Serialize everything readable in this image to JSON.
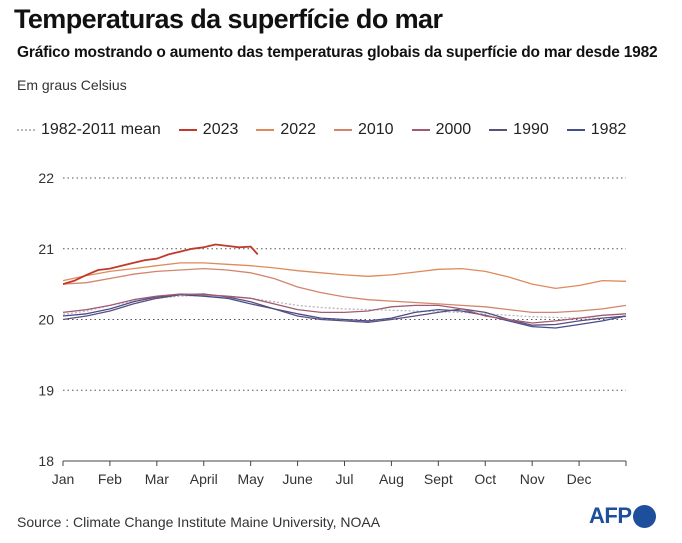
{
  "header": {
    "title": "Temperaturas da superfície do mar",
    "subtitle": "Gráfico mostrando o aumento das temperaturas globais da superfície do mar desde 1982",
    "unit": "Em graus Celsius"
  },
  "legend": [
    {
      "label": "1982-2011 mean",
      "color": "#b8b8b8",
      "style": "dotted"
    },
    {
      "label": "2023",
      "color": "#c0392b",
      "style": "solid"
    },
    {
      "label": "2022",
      "color": "#e08a5a",
      "style": "solid"
    },
    {
      "label": "2010",
      "color": "#d3856b",
      "style": "solid"
    },
    {
      "label": "2000",
      "color": "#a25a72",
      "style": "solid"
    },
    {
      "label": "1990",
      "color": "#5c4f7a",
      "style": "solid"
    },
    {
      "label": "1982",
      "color": "#474c8e",
      "style": "solid"
    }
  ],
  "footer": {
    "source": "Source : Climate Change Institute Maine University, NOAA",
    "logo_text": "AFP"
  },
  "chart_data": {
    "type": "line",
    "title": "Temperaturas da superfície do mar",
    "ylabel": "Em graus Celsius",
    "xlabel": "",
    "categories": [
      "Jan",
      "Feb",
      "Mar",
      "April",
      "May",
      "June",
      "Jul",
      "Aug",
      "Sept",
      "Oct",
      "Nov",
      "Dec"
    ],
    "ylim": [
      18,
      22
    ],
    "yticks": [
      18,
      19,
      20,
      21,
      22
    ],
    "xlim": [
      0,
      12
    ],
    "grid": "dotted horizontal",
    "series": [
      {
        "name": "1982-2011 mean",
        "color": "#b8b8b8",
        "dash": "2,2",
        "x": [
          0,
          0.5,
          1,
          1.5,
          2,
          2.5,
          3,
          3.5,
          4,
          4.5,
          5,
          5.5,
          6,
          6.5,
          7,
          7.5,
          8,
          8.5,
          9,
          9.5,
          10,
          10.5,
          11,
          11.5,
          12
        ],
        "values": [
          20.07,
          20.12,
          20.2,
          20.26,
          20.3,
          20.33,
          20.34,
          20.33,
          20.3,
          20.25,
          20.2,
          20.17,
          20.15,
          20.14,
          20.13,
          20.12,
          20.11,
          20.1,
          20.08,
          20.06,
          20.04,
          20.03,
          20.02,
          20.02,
          20.04
        ]
      },
      {
        "name": "2023",
        "color": "#c0392b",
        "dash": "",
        "x": [
          0,
          0.25,
          0.5,
          0.75,
          1,
          1.25,
          1.5,
          1.75,
          2,
          2.25,
          2.5,
          2.75,
          3,
          3.25,
          3.5,
          3.75,
          4,
          4.15
        ],
        "values": [
          20.5,
          20.55,
          20.63,
          20.7,
          20.72,
          20.76,
          20.8,
          20.84,
          20.86,
          20.92,
          20.96,
          21.0,
          21.02,
          21.06,
          21.04,
          21.02,
          21.03,
          20.92
        ]
      },
      {
        "name": "2022",
        "color": "#e08a5a",
        "dash": "",
        "x": [
          0,
          0.5,
          1,
          1.5,
          2,
          2.5,
          3,
          3.5,
          4,
          4.5,
          5,
          5.5,
          6,
          6.5,
          7,
          7.5,
          8,
          8.5,
          9,
          9.5,
          10,
          10.5,
          11,
          11.5,
          12
        ],
        "values": [
          20.55,
          20.62,
          20.68,
          20.72,
          20.76,
          20.8,
          20.8,
          20.78,
          20.76,
          20.73,
          20.69,
          20.66,
          20.63,
          20.61,
          20.63,
          20.67,
          20.71,
          20.72,
          20.68,
          20.6,
          20.5,
          20.44,
          20.48,
          20.55,
          20.54
        ]
      },
      {
        "name": "2010",
        "color": "#d3856b",
        "dash": "",
        "x": [
          0,
          0.5,
          1,
          1.5,
          2,
          2.5,
          3,
          3.5,
          4,
          4.5,
          5,
          5.5,
          6,
          6.5,
          7,
          7.5,
          8,
          8.5,
          9,
          9.5,
          10,
          10.5,
          11,
          11.5,
          12
        ],
        "values": [
          20.5,
          20.52,
          20.58,
          20.64,
          20.68,
          20.7,
          20.72,
          20.7,
          20.66,
          20.58,
          20.46,
          20.38,
          20.32,
          20.28,
          20.26,
          20.24,
          20.22,
          20.2,
          20.18,
          20.14,
          20.1,
          20.1,
          20.12,
          20.15,
          20.2
        ]
      },
      {
        "name": "2000",
        "color": "#a25a72",
        "dash": "",
        "x": [
          0,
          0.5,
          1,
          1.5,
          2,
          2.5,
          3,
          3.5,
          4,
          4.5,
          5,
          5.5,
          6,
          6.5,
          7,
          7.5,
          8,
          8.5,
          9,
          9.5,
          10,
          10.5,
          11,
          11.5,
          12
        ],
        "values": [
          20.1,
          20.14,
          20.2,
          20.28,
          20.33,
          20.36,
          20.35,
          20.33,
          20.3,
          20.22,
          20.14,
          20.1,
          20.1,
          20.12,
          20.18,
          20.2,
          20.2,
          20.15,
          20.05,
          20.0,
          19.95,
          19.98,
          20.02,
          20.06,
          20.08
        ]
      },
      {
        "name": "1990",
        "color": "#5c4f7a",
        "dash": "",
        "x": [
          0,
          0.5,
          1,
          1.5,
          2,
          2.5,
          3,
          3.5,
          4,
          4.5,
          5,
          5.5,
          6,
          6.5,
          7,
          7.5,
          8,
          8.5,
          9,
          9.5,
          10,
          10.5,
          11,
          11.5,
          12
        ],
        "values": [
          20.0,
          20.05,
          20.12,
          20.22,
          20.3,
          20.35,
          20.36,
          20.32,
          20.25,
          20.15,
          20.05,
          20.0,
          19.98,
          19.96,
          20.0,
          20.05,
          20.1,
          20.15,
          20.1,
          20.0,
          19.92,
          19.93,
          19.98,
          20.02,
          20.05
        ]
      },
      {
        "name": "1982",
        "color": "#474c8e",
        "dash": "",
        "x": [
          0,
          0.5,
          1,
          1.5,
          2,
          2.5,
          3,
          3.5,
          4,
          4.5,
          5,
          5.5,
          6,
          6.5,
          7,
          7.5,
          8,
          8.5,
          9,
          9.5,
          10,
          10.5,
          11,
          11.5,
          12
        ],
        "values": [
          20.05,
          20.08,
          20.15,
          20.25,
          20.32,
          20.35,
          20.33,
          20.3,
          20.22,
          20.15,
          20.08,
          20.02,
          20.0,
          19.98,
          20.02,
          20.1,
          20.14,
          20.12,
          20.06,
          19.98,
          19.9,
          19.88,
          19.93,
          19.98,
          20.05
        ]
      }
    ]
  }
}
